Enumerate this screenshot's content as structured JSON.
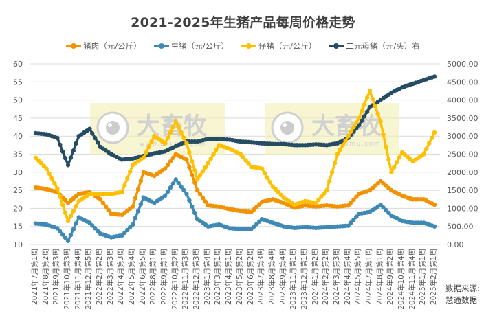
{
  "title": "2021-2025年生猪产品每周价格走势",
  "legend": [
    {
      "label": "猪肉（元/公斤）",
      "color": "#F39200"
    },
    {
      "label": "生猪（元/公斤）",
      "color": "#3E89B5"
    },
    {
      "label": "仔猪（元/公斤）",
      "color": "#FFC000"
    },
    {
      "label": "二元母猪（元/头）右",
      "color": "#244C63"
    }
  ],
  "source": {
    "line1": "数据来源:",
    "line2": "慧通数据"
  },
  "watermark": {
    "brand": "大畜牧",
    "url": "www.dxumu.com"
  },
  "chart_data": {
    "type": "line",
    "title": "2021-2025年生猪产品每周价格走势",
    "xlabel": "",
    "ylabel_left": "元/公斤",
    "ylabel_right": "元/头",
    "ylim_left": [
      10,
      60
    ],
    "yticks_left": [
      10,
      15,
      20,
      25,
      30,
      35,
      40,
      45,
      50,
      55,
      60
    ],
    "ylim_right": [
      0,
      5000
    ],
    "yticks_right": [
      "0.00",
      "500.00",
      "1000.00",
      "1500.00",
      "2000.00",
      "2500.00",
      "3000.00",
      "3500.00",
      "4000.00",
      "4500.00",
      "5000.00"
    ],
    "grid": true,
    "legend_position": "top",
    "categories": [
      "2021年7月第1周",
      "2021年8月第2周",
      "2021年9月第3周",
      "2021年10月第3周",
      "2021年11月第4周",
      "2021年12月第5周",
      "2022年2月第2周",
      "2022年3月第3周",
      "2022年4月第3周",
      "2022年5月第4周",
      "2022年6月第5周",
      "2022年8月第1周",
      "2022年9月第1周",
      "2022年10月第2周",
      "2022年11月第3周",
      "2022年12月第3周",
      "2023年1月第4周",
      "2023年3月第1周",
      "2023年4月第1周",
      "2023年5月第2周",
      "2023年6月第2周",
      "2023年7月第3周",
      "2023年8月第4周",
      "2023年9月第4周",
      "2023年11月第1周",
      "2023年12月第1周",
      "2024年1月第2周",
      "2024年2月第2周",
      "2024年3月第3周",
      "2024年4月第4周",
      "2024年5月第5周",
      "2024年7月第1周",
      "2024年8月第1周",
      "2024年9月第2周",
      "2024年10月第4周",
      "2024年11月第4周",
      "2025年1月第1周",
      "2025年2月第1周"
    ],
    "series": [
      {
        "name": "猪肉（元/公斤）",
        "axis": "left",
        "color": "#F39200",
        "values": [
          25.8,
          25.3,
          24.5,
          21.5,
          24.0,
          24.5,
          22.5,
          18.5,
          18.2,
          20.5,
          30.0,
          29.0,
          31.0,
          35.0,
          33.5,
          25.0,
          20.8,
          20.5,
          19.8,
          19.3,
          19.0,
          21.8,
          22.5,
          21.5,
          20.2,
          20.8,
          20.5,
          20.8,
          20.5,
          20.8,
          24.0,
          25.0,
          27.5,
          25.0,
          23.5,
          22.5,
          22.5,
          21.0
        ]
      },
      {
        "name": "生猪（元/公斤）",
        "axis": "left",
        "color": "#3E89B5",
        "values": [
          15.8,
          15.5,
          14.5,
          11.0,
          17.5,
          16.0,
          13.0,
          12.0,
          12.5,
          15.5,
          23.0,
          21.5,
          23.5,
          28.0,
          24.0,
          17.0,
          15.0,
          15.5,
          14.5,
          14.3,
          14.3,
          17.0,
          16.0,
          15.0,
          14.6,
          14.8,
          14.6,
          14.8,
          15.0,
          15.2,
          18.5,
          19.0,
          21.0,
          18.0,
          16.5,
          16.0,
          16.0,
          15.0
        ]
      },
      {
        "name": "仔猪（元/公斤）",
        "axis": "left",
        "color": "#FFC000",
        "values": [
          34.0,
          31.0,
          25.5,
          16.5,
          22.0,
          24.0,
          24.0,
          24.0,
          24.5,
          32.0,
          34.0,
          40.0,
          38.0,
          44.0,
          38.0,
          28.0,
          32.5,
          37.5,
          36.5,
          35.0,
          31.5,
          31.0,
          26.0,
          23.0,
          21.0,
          22.0,
          21.5,
          25.0,
          35.0,
          40.0,
          45.0,
          52.5,
          44.0,
          30.0,
          35.5,
          33.0,
          35.0,
          41.0
        ]
      },
      {
        "name": "二元母猪（元/头）右",
        "axis": "right",
        "color": "#244C63",
        "values": [
          3080,
          3050,
          2950,
          2200,
          3000,
          3200,
          2700,
          2500,
          2350,
          2380,
          2450,
          2520,
          2580,
          2720,
          2850,
          2850,
          2920,
          2920,
          2900,
          2850,
          2830,
          2800,
          2780,
          2780,
          2750,
          2750,
          2770,
          2750,
          2800,
          2950,
          3300,
          3800,
          4000,
          4200,
          4350,
          4450,
          4550,
          4650
        ]
      }
    ]
  }
}
